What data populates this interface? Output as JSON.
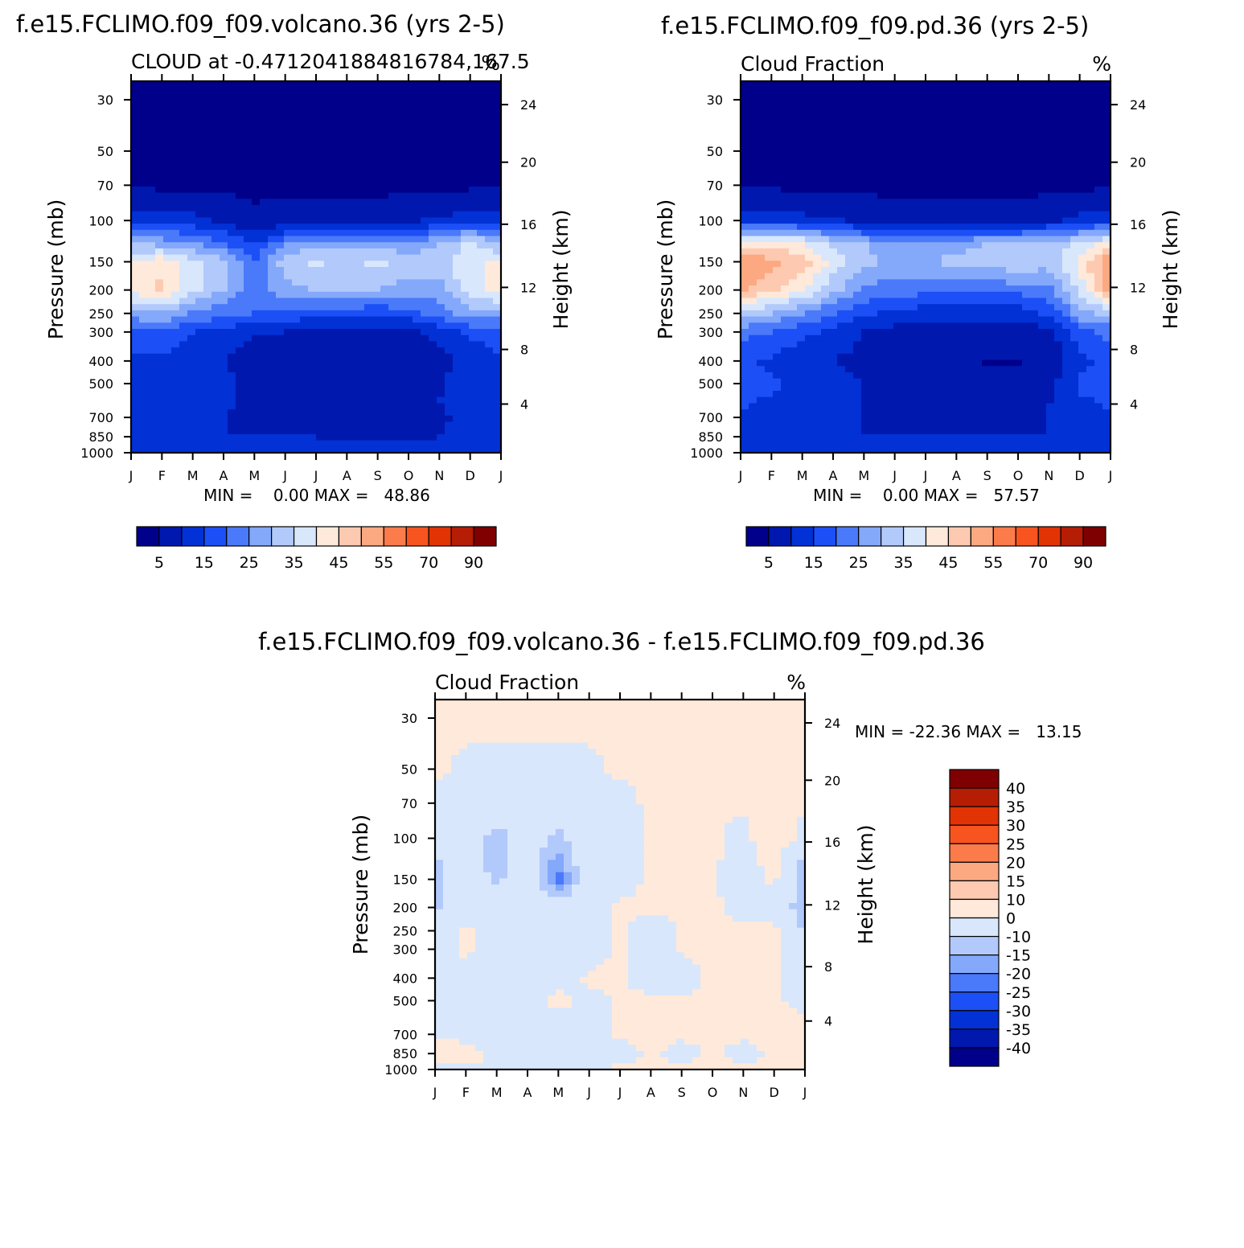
{
  "chart_data": [
    {
      "type": "heatmap",
      "id": "volcano",
      "title": "f.e15.FCLIMO.f09_f09.volcano.36 (yrs 2-5)",
      "subtitle_left": "CLOUD at -0.4712041884816784,167.5",
      "subtitle_right": "%",
      "xlabel": "",
      "ylabel_left": "Pressure (mb)",
      "ylabel_right": "Height (km)",
      "x_ticks": [
        "J",
        "F",
        "M",
        "A",
        "M",
        "J",
        "J",
        "A",
        "S",
        "O",
        "N",
        "D",
        "J"
      ],
      "y_ticks_left": [
        "30",
        "50",
        "70",
        "100",
        "150",
        "200",
        "250",
        "300",
        "400",
        "500",
        "700",
        "850",
        "1000"
      ],
      "y_ticks_right": [
        "24",
        "20",
        "16",
        "12",
        "8",
        "4"
      ],
      "stats": "MIN =    0.00 MAX =   48.86",
      "min": 0.0,
      "max": 48.86,
      "levels_hpa": [
        30,
        50,
        70,
        100,
        125,
        150,
        200,
        250,
        300,
        400,
        500,
        600,
        700,
        850,
        1000
      ],
      "months": [
        "J",
        "F",
        "M",
        "A",
        "M",
        "J",
        "J",
        "A",
        "S",
        "O",
        "N",
        "D",
        "J"
      ],
      "z": [
        [
          0,
          0,
          0,
          0,
          0,
          0,
          0,
          0,
          0,
          0,
          0,
          0,
          0
        ],
        [
          0,
          0,
          0,
          0,
          0,
          0,
          0,
          0,
          0,
          0,
          0,
          0,
          0
        ],
        [
          1,
          1,
          1,
          1,
          0,
          0,
          0,
          0,
          0,
          0,
          0,
          1,
          1
        ],
        [
          14,
          13,
          12,
          9,
          5,
          6,
          7,
          8,
          8,
          9,
          11,
          14,
          14
        ],
        [
          30,
          28,
          25,
          20,
          14,
          24,
          28,
          27,
          27,
          26,
          30,
          36,
          30
        ],
        [
          40,
          44,
          36,
          32,
          20,
          33,
          36,
          34,
          37,
          33,
          32,
          40,
          40
        ],
        [
          42,
          46,
          37,
          30,
          22,
          28,
          30,
          30,
          30,
          28,
          28,
          38,
          42
        ],
        [
          28,
          30,
          24,
          22,
          20,
          18,
          18,
          17,
          16,
          18,
          22,
          28,
          28
        ],
        [
          18,
          18,
          15,
          14,
          10,
          10,
          8,
          9,
          8,
          8,
          12,
          16,
          18
        ],
        [
          14,
          14,
          12,
          10,
          6,
          3,
          3,
          3,
          3,
          3,
          8,
          12,
          14
        ],
        [
          12,
          12,
          13,
          12,
          8,
          6,
          6,
          6,
          8,
          6,
          9,
          14,
          12
        ],
        [
          14,
          14,
          12,
          12,
          8,
          8,
          8,
          8,
          8,
          8,
          10,
          14,
          14
        ],
        [
          12,
          11,
          10,
          10,
          8,
          8,
          8,
          8,
          7,
          8,
          9,
          12,
          12
        ],
        [
          12,
          11,
          10,
          10,
          10,
          10,
          10,
          9,
          9,
          9,
          10,
          12,
          12
        ],
        [
          14,
          12,
          12,
          12,
          12,
          12,
          12,
          12,
          12,
          12,
          12,
          14,
          14
        ]
      ],
      "colorbar_labels": [
        "5",
        "15",
        "25",
        "35",
        "45",
        "55",
        "70",
        "90"
      ]
    },
    {
      "type": "heatmap",
      "id": "pd",
      "title": "f.e15.FCLIMO.f09_f09.pd.36 (yrs 2-5)",
      "subtitle_left": "Cloud Fraction",
      "subtitle_right": "%",
      "xlabel": "",
      "ylabel_left": "Pressure (mb)",
      "ylabel_right": "Height (km)",
      "x_ticks": [
        "J",
        "F",
        "M",
        "A",
        "M",
        "J",
        "J",
        "A",
        "S",
        "O",
        "N",
        "D",
        "J"
      ],
      "y_ticks_left": [
        "30",
        "50",
        "70",
        "100",
        "150",
        "200",
        "250",
        "300",
        "400",
        "500",
        "700",
        "850",
        "1000"
      ],
      "y_ticks_right": [
        "24",
        "20",
        "16",
        "12",
        "8",
        "4"
      ],
      "stats": "MIN =    0.00 MAX =   57.57",
      "min": 0.0,
      "max": 57.57,
      "levels_hpa": [
        30,
        50,
        70,
        100,
        125,
        150,
        200,
        250,
        300,
        400,
        500,
        600,
        700,
        850,
        1000
      ],
      "months": [
        "J",
        "F",
        "M",
        "A",
        "M",
        "J",
        "J",
        "A",
        "S",
        "O",
        "N",
        "D",
        "J"
      ],
      "z": [
        [
          0,
          0,
          0,
          0,
          0,
          0,
          0,
          0,
          0,
          0,
          0,
          0,
          0
        ],
        [
          0,
          0,
          0,
          0,
          0,
          0,
          0,
          0,
          0,
          0,
          0,
          0,
          0
        ],
        [
          1,
          1,
          1,
          1,
          1,
          0,
          0,
          0,
          0,
          0,
          0,
          1,
          1
        ],
        [
          14,
          14,
          12,
          11,
          8,
          6,
          6,
          7,
          7,
          7,
          9,
          12,
          14
        ],
        [
          42,
          42,
          40,
          34,
          30,
          26,
          28,
          28,
          30,
          30,
          32,
          36,
          42
        ],
        [
          55,
          52,
          48,
          38,
          32,
          28,
          30,
          31,
          32,
          34,
          32,
          42,
          55
        ],
        [
          52,
          46,
          40,
          32,
          24,
          22,
          22,
          22,
          22,
          22,
          24,
          36,
          52
        ],
        [
          32,
          30,
          26,
          20,
          16,
          14,
          12,
          12,
          12,
          12,
          16,
          28,
          32
        ],
        [
          22,
          20,
          16,
          14,
          10,
          8,
          6,
          6,
          6,
          6,
          8,
          18,
          22
        ],
        [
          16,
          14,
          12,
          10,
          8,
          3,
          3,
          3,
          2,
          2,
          6,
          14,
          16
        ],
        [
          18,
          16,
          14,
          12,
          10,
          8,
          6,
          6,
          6,
          6,
          8,
          16,
          18
        ],
        [
          16,
          14,
          12,
          12,
          10,
          8,
          8,
          8,
          8,
          8,
          10,
          14,
          16
        ],
        [
          14,
          12,
          12,
          12,
          10,
          8,
          8,
          8,
          8,
          8,
          10,
          14,
          14
        ],
        [
          14,
          12,
          12,
          12,
          10,
          10,
          10,
          10,
          10,
          10,
          10,
          12,
          14
        ],
        [
          14,
          14,
          12,
          12,
          12,
          12,
          12,
          12,
          12,
          12,
          12,
          14,
          14
        ]
      ],
      "colorbar_labels": [
        "5",
        "15",
        "25",
        "35",
        "45",
        "55",
        "70",
        "90"
      ]
    },
    {
      "type": "heatmap",
      "id": "diff",
      "title": "f.e15.FCLIMO.f09_f09.volcano.36 - f.e15.FCLIMO.f09_f09.pd.36",
      "subtitle_left": "Cloud Fraction",
      "subtitle_right": "%",
      "xlabel": "",
      "ylabel_left": "Pressure (mb)",
      "ylabel_right": "Height (km)",
      "x_ticks": [
        "J",
        "F",
        "M",
        "A",
        "M",
        "J",
        "J",
        "A",
        "S",
        "O",
        "N",
        "D",
        "J"
      ],
      "y_ticks_left": [
        "30",
        "50",
        "70",
        "100",
        "150",
        "200",
        "250",
        "300",
        "400",
        "500",
        "700",
        "850",
        "1000"
      ],
      "y_ticks_right": [
        "24",
        "20",
        "16",
        "12",
        "8",
        "4"
      ],
      "stats": "MIN = -22.36 MAX =   13.15",
      "min": -22.36,
      "max": 13.15,
      "levels_hpa": [
        30,
        50,
        70,
        100,
        125,
        150,
        200,
        250,
        300,
        400,
        500,
        600,
        700,
        850,
        1000
      ],
      "months": [
        "J",
        "F",
        "M",
        "A",
        "M",
        "J",
        "J",
        "A",
        "S",
        "O",
        "N",
        "D",
        "J"
      ],
      "z": [
        [
          1,
          1,
          1,
          1,
          1,
          1,
          1,
          1,
          1,
          1,
          1,
          1,
          1
        ],
        [
          1,
          -1,
          -1,
          -1,
          -1,
          -1,
          1,
          1,
          1,
          1,
          1,
          1,
          1
        ],
        [
          -2,
          -2,
          -3,
          -3,
          -4,
          -3,
          -2,
          1,
          1,
          1,
          1,
          1,
          1
        ],
        [
          -4,
          -3,
          -14,
          -4,
          -12,
          -2,
          -3,
          1,
          1,
          1,
          -2,
          6,
          -3
        ],
        [
          -12,
          -4,
          -14,
          -5,
          -18,
          -3,
          -4,
          1,
          1,
          1,
          -3,
          3,
          -14
        ],
        [
          -14,
          -4,
          -12,
          -4,
          -22,
          -4,
          -3,
          1,
          1,
          1,
          -4,
          1,
          -14
        ],
        [
          -12,
          -3,
          -4,
          -3,
          -6,
          -3,
          1,
          1,
          1,
          1,
          -2,
          -1,
          -16
        ],
        [
          -4,
          1,
          -3,
          -3,
          -3,
          -3,
          1,
          -4,
          1,
          1,
          1,
          1,
          -10
        ],
        [
          -3,
          1,
          -3,
          -3,
          -3,
          -3,
          1,
          -4,
          1,
          1,
          1,
          1,
          -4
        ],
        [
          -2,
          -2,
          -3,
          -3,
          -3,
          1,
          1,
          -3,
          -3,
          1,
          1,
          1,
          -2
        ],
        [
          -2,
          -2,
          -3,
          -2,
          2,
          -2,
          1,
          1,
          1,
          1,
          1,
          1,
          -2
        ],
        [
          -2,
          -2,
          -3,
          -2,
          -2,
          -2,
          1,
          1,
          1,
          1,
          1,
          1,
          1
        ],
        [
          -2,
          -2,
          -2,
          -2,
          -2,
          -2,
          1,
          1,
          1,
          1,
          1,
          1,
          1
        ],
        [
          4,
          3,
          -2,
          -2,
          -2,
          -2,
          -2,
          1,
          -2,
          1,
          -2,
          1,
          1
        ],
        [
          -1,
          -1,
          -1,
          -1,
          -1,
          -1,
          1,
          1,
          1,
          1,
          1,
          1,
          1
        ]
      ],
      "colorbar_labels": [
        "40",
        "35",
        "30",
        "25",
        "20",
        "15",
        "10",
        "0",
        "-10",
        "-15",
        "-20",
        "-25",
        "-30",
        "-35",
        "-40"
      ]
    }
  ],
  "colors": {
    "seq_palette": [
      "#01008a",
      "#0118ae",
      "#0231d5",
      "#1c4ff5",
      "#4a79fa",
      "#84a8fa",
      "#b2c9fb",
      "#d8e7fc",
      "#ffe9da",
      "#fdcab1",
      "#fca982",
      "#fc7b4b",
      "#f7541f",
      "#e13304",
      "#b61d05",
      "#7f0000"
    ],
    "div_palette_top_down": [
      "#7f0000",
      "#b61d05",
      "#e13304",
      "#f7541f",
      "#fc7b4b",
      "#fca982",
      "#fdcab1",
      "#ffe9da",
      "#d8e7fc",
      "#b2c9fb",
      "#84a8fa",
      "#4a79fa",
      "#1c4ff5",
      "#0231d5",
      "#0118ae",
      "#01008a"
    ]
  },
  "seq_bounds": [
    2.5,
    10,
    15,
    20,
    25,
    30,
    35,
    40,
    45,
    50,
    55,
    60,
    70,
    80,
    90
  ],
  "div_bounds": [
    -40,
    -35,
    -30,
    -25,
    -20,
    -15,
    -10,
    0,
    10,
    15,
    20,
    25,
    30,
    35,
    40
  ]
}
